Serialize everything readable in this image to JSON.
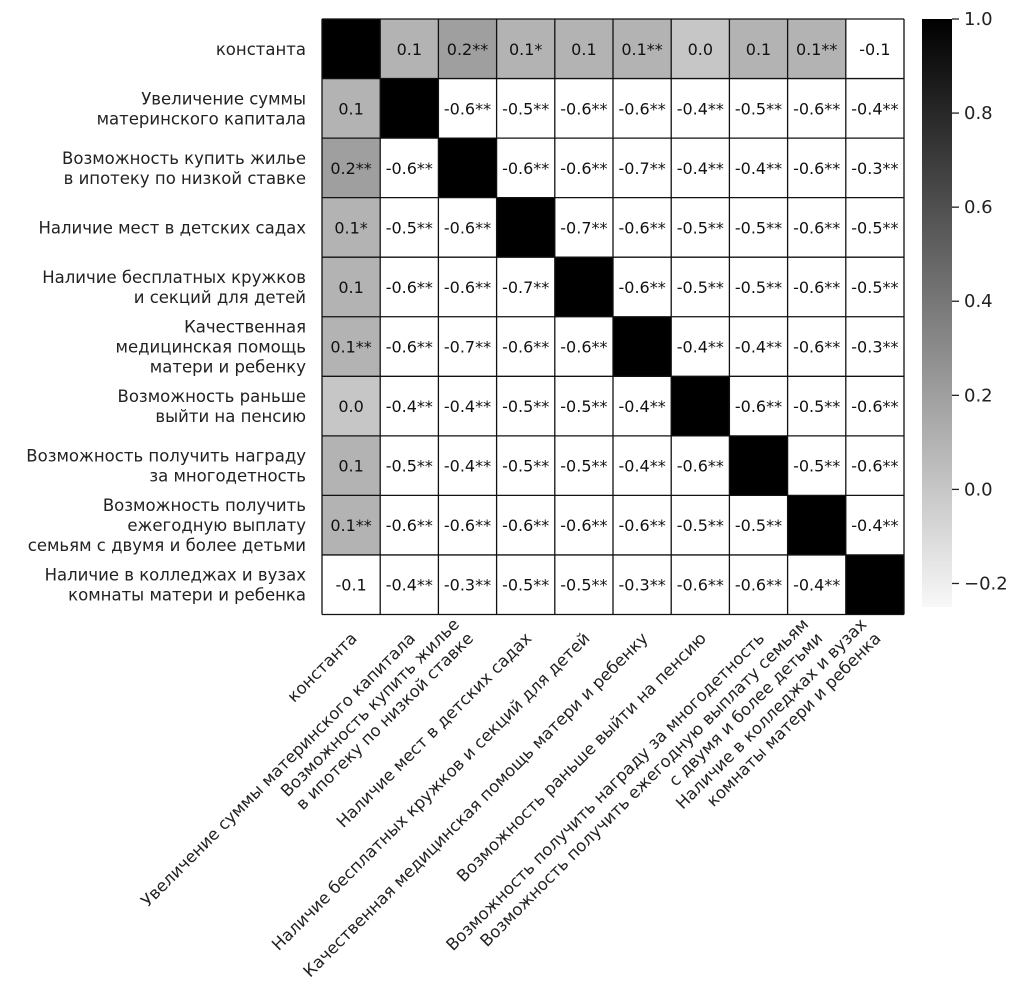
{
  "chart_data": {
    "type": "heatmap",
    "rows": [
      [
        "константа"
      ],
      [
        "Увеличение суммы",
        "материнского капитала"
      ],
      [
        "Возможность купить жилье",
        "в ипотеку по низкой ставке"
      ],
      [
        "Наличие мест в детских садах"
      ],
      [
        "Наличие бесплатных кружков",
        "и секций для детей"
      ],
      [
        "Качественная",
        "медицинская помощь",
        "матери и ребенку"
      ],
      [
        "Возможность раньше",
        "выйти на пенсию"
      ],
      [
        "Возможность получить награду",
        "за многодетность"
      ],
      [
        "Возможность получить",
        "ежегодную выплату",
        "семьям с двумя и более детьми"
      ],
      [
        "Наличие в колледжах и вузах",
        "комнаты матери и ребенка"
      ]
    ],
    "columns": [
      [
        "константа"
      ],
      [
        "Увеличение суммы материнского капитала"
      ],
      [
        "Возможность купить жилье",
        "в ипотеку по низкой ставке"
      ],
      [
        "Наличие мест в детских садах"
      ],
      [
        "Наличие бесплатных кружков и секций для детей"
      ],
      [
        "Качественная медицинская помощь матери и ребенку"
      ],
      [
        "Возможность раньше выйти на пенсию"
      ],
      [
        "Возможность получить награду за многодетность"
      ],
      [
        "Возможность получить ежегодную выплату семьям",
        "с двумя и более детьми"
      ],
      [
        "Наличие в колледжах и вузах",
        "комнаты матери и ребенка"
      ]
    ],
    "values": [
      [
        1.0,
        0.1,
        0.2,
        0.1,
        0.1,
        0.1,
        0.0,
        0.1,
        0.1,
        -0.1
      ],
      [
        0.1,
        1.0,
        -0.6,
        -0.5,
        -0.6,
        -0.6,
        -0.4,
        -0.5,
        -0.6,
        -0.4
      ],
      [
        0.2,
        -0.6,
        1.0,
        -0.6,
        -0.6,
        -0.7,
        -0.4,
        -0.4,
        -0.6,
        -0.3
      ],
      [
        0.1,
        -0.5,
        -0.6,
        1.0,
        -0.7,
        -0.6,
        -0.5,
        -0.5,
        -0.6,
        -0.5
      ],
      [
        0.1,
        -0.6,
        -0.6,
        -0.7,
        1.0,
        -0.6,
        -0.5,
        -0.5,
        -0.6,
        -0.5
      ],
      [
        0.1,
        -0.6,
        -0.7,
        -0.6,
        -0.6,
        1.0,
        -0.4,
        -0.4,
        -0.6,
        -0.3
      ],
      [
        0.0,
        -0.4,
        -0.4,
        -0.5,
        -0.5,
        -0.4,
        1.0,
        -0.6,
        -0.5,
        -0.6
      ],
      [
        0.1,
        -0.5,
        -0.4,
        -0.5,
        -0.5,
        -0.4,
        -0.6,
        1.0,
        -0.5,
        -0.6
      ],
      [
        0.1,
        -0.6,
        -0.6,
        -0.6,
        -0.6,
        -0.6,
        -0.5,
        -0.5,
        1.0,
        -0.4
      ],
      [
        -0.1,
        -0.4,
        -0.3,
        -0.5,
        -0.5,
        -0.3,
        -0.6,
        -0.6,
        -0.4,
        1.0
      ]
    ],
    "annotations": [
      [
        "",
        "0.1",
        "0.2**",
        "0.1*",
        "0.1",
        "0.1**",
        "0.0",
        "0.1",
        "0.1**",
        "-0.1"
      ],
      [
        "0.1",
        "",
        "-0.6**",
        "-0.5**",
        "-0.6**",
        "-0.6**",
        "-0.4**",
        "-0.5**",
        "-0.6**",
        "-0.4**"
      ],
      [
        "0.2**",
        "-0.6**",
        "",
        "-0.6**",
        "-0.6**",
        "-0.7**",
        "-0.4**",
        "-0.4**",
        "-0.6**",
        "-0.3**"
      ],
      [
        "0.1*",
        "-0.5**",
        "-0.6**",
        "",
        "-0.7**",
        "-0.6**",
        "-0.5**",
        "-0.5**",
        "-0.6**",
        "-0.5**"
      ],
      [
        "0.1",
        "-0.6**",
        "-0.6**",
        "-0.7**",
        "",
        "-0.6**",
        "-0.5**",
        "-0.5**",
        "-0.6**",
        "-0.5**"
      ],
      [
        "0.1**",
        "-0.6**",
        "-0.7**",
        "-0.6**",
        "-0.6**",
        "",
        "-0.4**",
        "-0.4**",
        "-0.6**",
        "-0.3**"
      ],
      [
        "0.0",
        "-0.4**",
        "-0.4**",
        "-0.5**",
        "-0.5**",
        "-0.4**",
        "",
        "-0.6**",
        "-0.5**",
        "-0.6**"
      ],
      [
        "0.1",
        "-0.5**",
        "-0.4**",
        "-0.5**",
        "-0.5**",
        "-0.4**",
        "-0.6**",
        "",
        "-0.5**",
        "-0.6**"
      ],
      [
        "0.1**",
        "-0.6**",
        "-0.6**",
        "-0.6**",
        "-0.6**",
        "-0.6**",
        "-0.5**",
        "-0.5**",
        "",
        "-0.4**"
      ],
      [
        "-0.1",
        "-0.4**",
        "-0.3**",
        "-0.5**",
        "-0.5**",
        "-0.3**",
        "-0.6**",
        "-0.6**",
        "-0.4**",
        ""
      ]
    ],
    "colorbar": {
      "ticks": [
        "1.0",
        "0.8",
        "0.6",
        "0.4",
        "0.2",
        "0.0",
        "−0.2"
      ],
      "tick_values": [
        1.0,
        0.8,
        0.6,
        0.4,
        0.2,
        0.0,
        -0.2
      ],
      "vmin": -0.25,
      "vmax": 1.0
    },
    "colormap": "greys",
    "grid": true
  }
}
